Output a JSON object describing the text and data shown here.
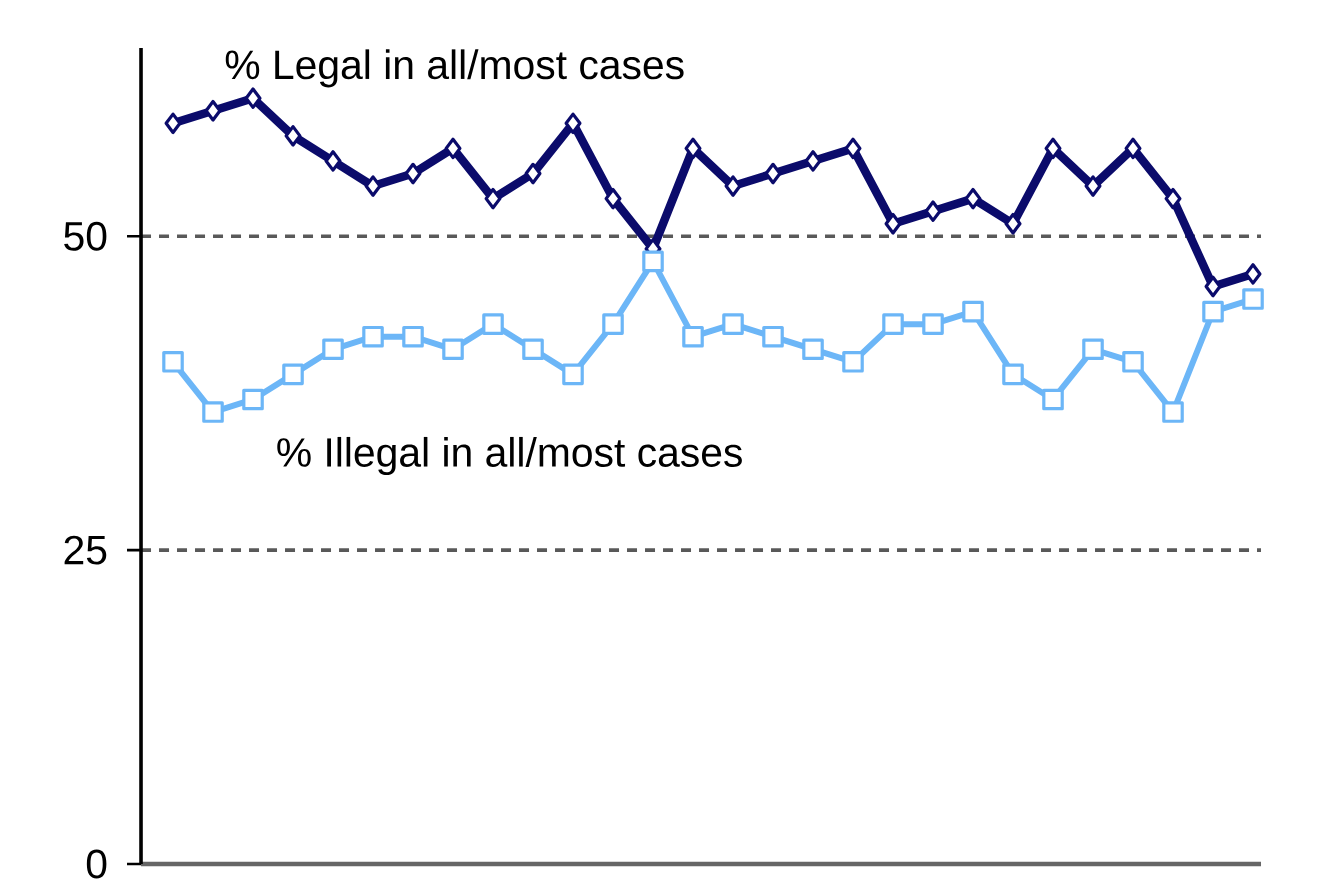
{
  "chart_data": {
    "type": "line",
    "categories": [
      null,
      null,
      null,
      null,
      null,
      null,
      null,
      null,
      null,
      null,
      null,
      null,
      null,
      null,
      null,
      null,
      null,
      null,
      null,
      null,
      null,
      null,
      null,
      null,
      null,
      null,
      null,
      null
    ],
    "series": [
      {
        "name": "% Legal in all/most cases",
        "color": "#0b0b6b",
        "marker": "diamond",
        "values": [
          59,
          60,
          61,
          58,
          56,
          54,
          55,
          57,
          53,
          55,
          59,
          53,
          49,
          57,
          54,
          55,
          56,
          57,
          51,
          52,
          53,
          51,
          57,
          54,
          57,
          53,
          46,
          47
        ]
      },
      {
        "name": "% Illegal in all/most cases",
        "color": "#6cb6f7",
        "marker": "square",
        "values": [
          40,
          36,
          37,
          39,
          41,
          42,
          42,
          41,
          43,
          41,
          39,
          43,
          48,
          42,
          43,
          42,
          41,
          40,
          43,
          43,
          44,
          39,
          37,
          41,
          40,
          36,
          44,
          45
        ]
      }
    ],
    "ylim": [
      0,
      65
    ],
    "yticks": [
      0,
      25,
      50
    ],
    "grid": "y",
    "legend": false
  }
}
